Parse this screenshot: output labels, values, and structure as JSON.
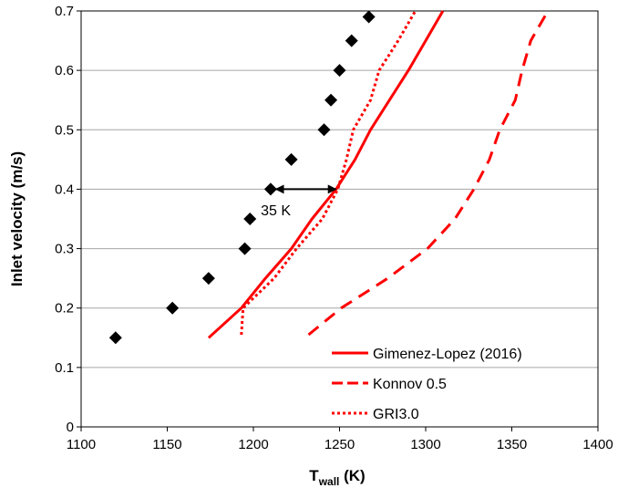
{
  "chart_data": {
    "type": "scatter",
    "title": "",
    "xlabel": "T",
    "xlabel_sub": "wall",
    "xlabel_unit": " (K)",
    "ylabel": "Inlet velocity (m/s)",
    "xlim": [
      1100,
      1400
    ],
    "ylim": [
      0,
      0.7
    ],
    "xticks": [
      1100,
      1150,
      1200,
      1250,
      1300,
      1350,
      1400
    ],
    "xtick_labels": [
      "1100",
      "1150",
      "1200",
      "1250",
      "1300",
      "1350",
      "1400"
    ],
    "yticks": [
      0,
      0.1,
      0.2,
      0.3,
      0.4,
      0.5,
      0.6,
      0.7
    ],
    "ytick_labels": [
      "0",
      "0.1",
      "0.2",
      "0.3",
      "0.4",
      "0.5",
      "0.6",
      "0.7"
    ],
    "grid": "horizontal",
    "legend_position": "bottom-right",
    "colors": {
      "model": "#ff0000",
      "experiment": "#000000",
      "grid": "#a6a6a6"
    },
    "series": [
      {
        "kind": "markers",
        "marker": "diamond",
        "color": "#000000",
        "points": [
          {
            "x": 1120,
            "y": 0.15
          },
          {
            "x": 1153,
            "y": 0.2
          },
          {
            "x": 1174,
            "y": 0.25
          },
          {
            "x": 1195,
            "y": 0.3
          },
          {
            "x": 1198,
            "y": 0.35
          },
          {
            "x": 1210,
            "y": 0.4
          },
          {
            "x": 1222,
            "y": 0.45
          },
          {
            "x": 1241,
            "y": 0.5
          },
          {
            "x": 1245,
            "y": 0.55
          },
          {
            "x": 1250,
            "y": 0.6
          },
          {
            "x": 1257,
            "y": 0.65
          },
          {
            "x": 1267,
            "y": 0.69
          }
        ]
      },
      {
        "name": "Gimenez-Lopez (2016)",
        "kind": "line",
        "style": "solid",
        "color": "#ff0000",
        "points": [
          {
            "x": 1174,
            "y": 0.15
          },
          {
            "x": 1193,
            "y": 0.2
          },
          {
            "x": 1207,
            "y": 0.25
          },
          {
            "x": 1222,
            "y": 0.3
          },
          {
            "x": 1234,
            "y": 0.35
          },
          {
            "x": 1248,
            "y": 0.4
          },
          {
            "x": 1259,
            "y": 0.45
          },
          {
            "x": 1268,
            "y": 0.5
          },
          {
            "x": 1279,
            "y": 0.55
          },
          {
            "x": 1290,
            "y": 0.6
          },
          {
            "x": 1300,
            "y": 0.65
          },
          {
            "x": 1310,
            "y": 0.7
          }
        ]
      },
      {
        "name": "Konnov 0.5",
        "kind": "line",
        "style": "dashed",
        "color": "#ff0000",
        "points": [
          {
            "x": 1232,
            "y": 0.155
          },
          {
            "x": 1251,
            "y": 0.2
          },
          {
            "x": 1278,
            "y": 0.25
          },
          {
            "x": 1301,
            "y": 0.3
          },
          {
            "x": 1317,
            "y": 0.35
          },
          {
            "x": 1328,
            "y": 0.4
          },
          {
            "x": 1337,
            "y": 0.45
          },
          {
            "x": 1343,
            "y": 0.5
          },
          {
            "x": 1352,
            "y": 0.55
          },
          {
            "x": 1356,
            "y": 0.6
          },
          {
            "x": 1361,
            "y": 0.65
          },
          {
            "x": 1371,
            "y": 0.7
          }
        ]
      },
      {
        "name": "GRI3.0",
        "kind": "line",
        "style": "dotted",
        "color": "#ff0000",
        "points": [
          {
            "x": 1193,
            "y": 0.155
          },
          {
            "x": 1194,
            "y": 0.2
          },
          {
            "x": 1212,
            "y": 0.25
          },
          {
            "x": 1225,
            "y": 0.3
          },
          {
            "x": 1240,
            "y": 0.35
          },
          {
            "x": 1249,
            "y": 0.4
          },
          {
            "x": 1254,
            "y": 0.45
          },
          {
            "x": 1258,
            "y": 0.5
          },
          {
            "x": 1268,
            "y": 0.55
          },
          {
            "x": 1273,
            "y": 0.6
          },
          {
            "x": 1284,
            "y": 0.65
          },
          {
            "x": 1294,
            "y": 0.7
          }
        ]
      }
    ],
    "annotations": [
      {
        "text": "35 K",
        "type": "double-arrow",
        "x_from": 1213,
        "x_to": 1248,
        "y": 0.4,
        "text_x": 1213,
        "text_y": 0.365
      }
    ]
  }
}
